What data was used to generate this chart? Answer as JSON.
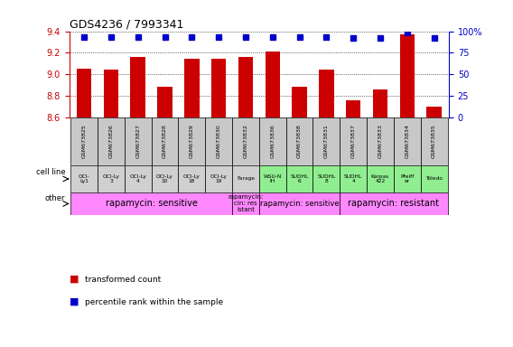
{
  "title": "GDS4236 / 7993341",
  "samples": [
    "GSM673825",
    "GSM673826",
    "GSM673827",
    "GSM673828",
    "GSM673829",
    "GSM673830",
    "GSM673832",
    "GSM673836",
    "GSM673838",
    "GSM673831",
    "GSM673837",
    "GSM673833",
    "GSM673834",
    "GSM673835"
  ],
  "red_values": [
    9.05,
    9.04,
    9.16,
    8.88,
    9.14,
    9.14,
    9.16,
    9.21,
    8.88,
    9.04,
    8.76,
    8.86,
    9.37,
    8.7
  ],
  "blue_values": [
    93,
    93,
    93,
    93,
    93,
    93,
    93,
    93,
    93,
    93,
    92,
    92,
    99,
    92
  ],
  "ymin": 8.6,
  "ymax": 9.4,
  "yticks": [
    8.6,
    8.8,
    9.0,
    9.2,
    9.4
  ],
  "right_yticks": [
    0,
    25,
    50,
    75,
    100
  ],
  "cell_lines": [
    "OCI-\nLy1",
    "OCI-Ly\n3",
    "OCI-Ly\n4",
    "OCI-Ly\n10",
    "OCI-Ly\n18",
    "OCI-Ly\n19",
    "Farage",
    "WSU-N\nIH",
    "SUDHL\n6",
    "SUDHL\n8",
    "SUDHL\n4",
    "Karpas\n422",
    "Pfeiff\ner",
    "Toledo"
  ],
  "cell_line_colors": [
    "#d0d0d0",
    "#d0d0d0",
    "#d0d0d0",
    "#d0d0d0",
    "#d0d0d0",
    "#d0d0d0",
    "#d0d0d0",
    "#90ee90",
    "#90ee90",
    "#90ee90",
    "#90ee90",
    "#90ee90",
    "#90ee90",
    "#90ee90"
  ],
  "other_groups": [
    {
      "label": "rapamycin: sensitive",
      "start": 0,
      "end": 5,
      "color": "#ff88ff",
      "fontsize": 7
    },
    {
      "label": "rapamycin:\ncin: res\nistant",
      "start": 6,
      "end": 6,
      "color": "#ff88ff",
      "fontsize": 5
    },
    {
      "label": "rapamycin: sensitive",
      "start": 7,
      "end": 9,
      "color": "#ff88ff",
      "fontsize": 6
    },
    {
      "label": "rapamycin: resistant",
      "start": 10,
      "end": 13,
      "color": "#ff88ff",
      "fontsize": 7
    }
  ],
  "bar_color": "#cc0000",
  "dot_color": "#0000cc",
  "bg_color": "#ffffff",
  "left_axis_color": "#cc0000",
  "right_axis_color": "#0000cc",
  "sample_bg": "#c8c8c8",
  "cell_border": "#000000"
}
